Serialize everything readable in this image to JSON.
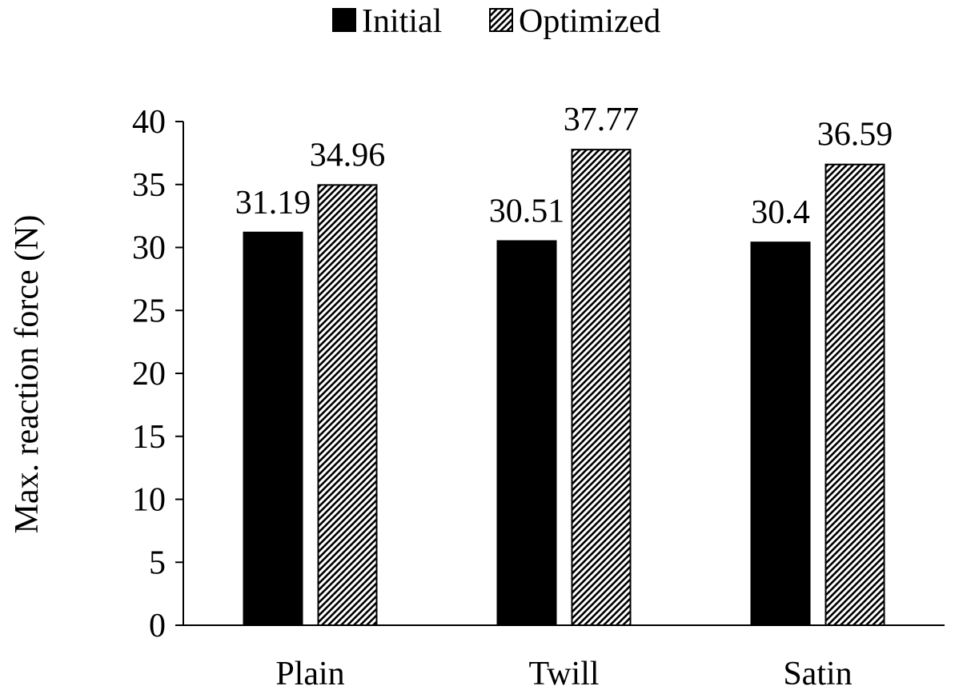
{
  "chart_data": {
    "type": "bar",
    "title": "",
    "xlabel": "",
    "ylabel": "Max. reaction force (N)",
    "categories": [
      "Plain",
      "Twill",
      "Satin"
    ],
    "series": [
      {
        "name": "Initial",
        "values": [
          31.19,
          30.51,
          30.4
        ],
        "fill": "solid",
        "color": "#000000",
        "value_labels": [
          "31.19",
          "30.51",
          "30.4"
        ]
      },
      {
        "name": "Optimized",
        "values": [
          34.96,
          37.77,
          36.59
        ],
        "fill": "diagonal-hatch",
        "color": "#000000",
        "value_labels": [
          "34.96",
          "37.77",
          "36.59"
        ]
      }
    ],
    "ylim": [
      0,
      40
    ],
    "yticks": [
      0,
      5,
      10,
      15,
      20,
      25,
      30,
      35,
      40
    ],
    "grid": false,
    "legend_position": "top-center"
  }
}
